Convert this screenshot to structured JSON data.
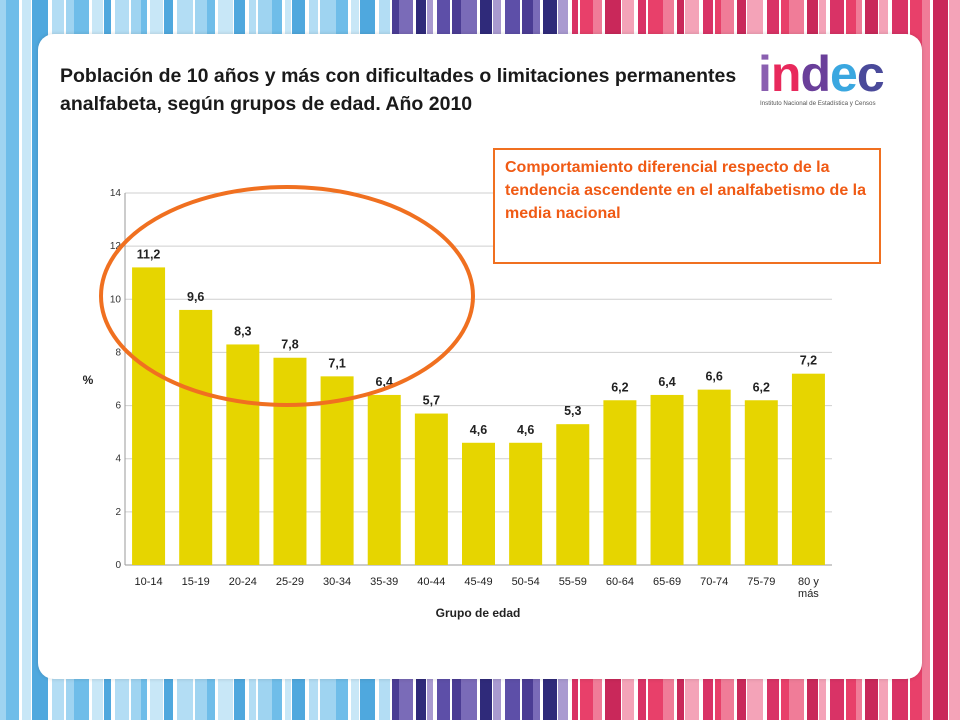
{
  "header": {
    "title": "Población de 10 años y más con dificultades o limitaciones permanentes analfabeta, según grupos de edad. Año 2010"
  },
  "logo": {
    "letters": [
      "i",
      "n",
      "d",
      "e",
      "c"
    ],
    "letter_colors": [
      "#8a5fb0",
      "#e8295c",
      "#6a3f9a",
      "#3aa7e0",
      "#4a4a9a"
    ],
    "subtitle": "Instituto Nacional de Estadística y Censos"
  },
  "note": {
    "text": "Comportamiento diferencial respecto de la tendencia ascendente en el analfabetismo de la media nacional",
    "color": "#f05a14"
  },
  "highlight": {
    "color": "#f07020",
    "covers_categories": [
      "10-14",
      "15-19",
      "20-24",
      "25-29",
      "30-34"
    ]
  },
  "chart_data": {
    "type": "bar",
    "title": "",
    "xlabel": "Grupo de edad",
    "ylabel": "%",
    "ylim": [
      0,
      14
    ],
    "yticks": [
      "0",
      "2",
      "4",
      "6",
      "8",
      "10",
      "12",
      "14"
    ],
    "grid": true,
    "bar_color": "#e6d500",
    "categories": [
      "10-14",
      "15-19",
      "20-24",
      "25-29",
      "30-34",
      "35-39",
      "40-44",
      "45-49",
      "50-54",
      "55-59",
      "60-64",
      "65-69",
      "70-74",
      "75-79",
      "80 y más"
    ],
    "values": [
      11.2,
      9.6,
      8.3,
      7.8,
      7.1,
      6.4,
      5.7,
      4.6,
      4.6,
      5.3,
      6.2,
      6.4,
      6.6,
      6.2,
      7.2
    ],
    "data_labels": [
      "11,2",
      "9,6",
      "8,3",
      "7,8",
      "7,1",
      "6,4",
      "5,7",
      "4,6",
      "4,6",
      "5,3",
      "6,2",
      "6,4",
      "6,6",
      "6,2",
      "7,2"
    ]
  }
}
